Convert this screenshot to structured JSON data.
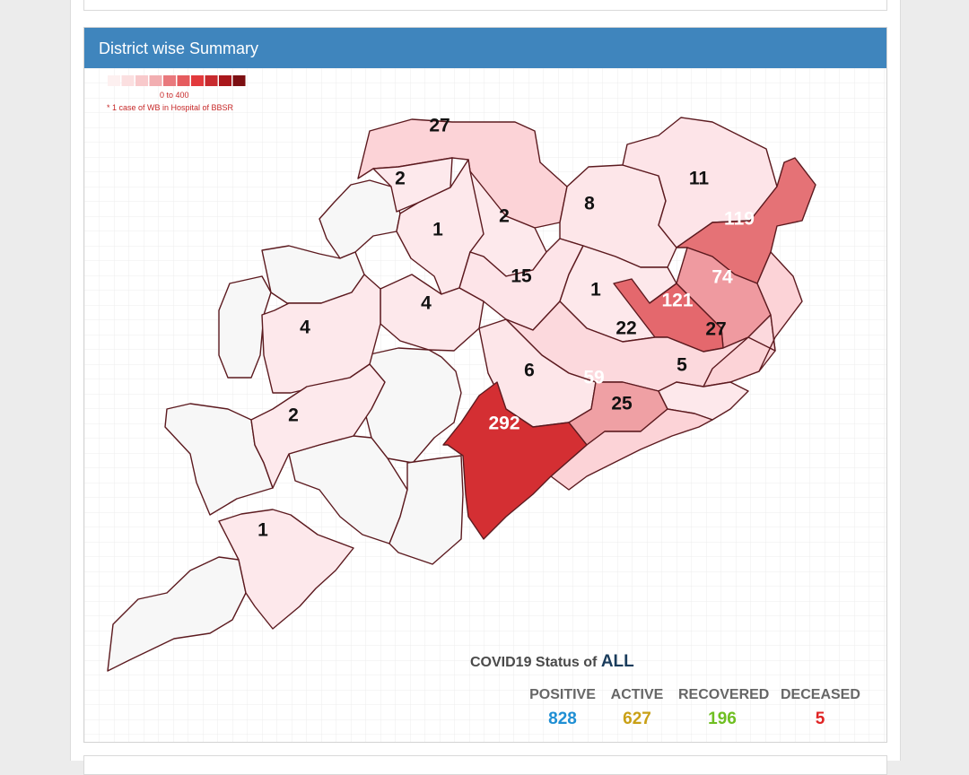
{
  "card": {
    "title": "District wise Summary"
  },
  "legend": {
    "range": "0 to 400",
    "note": "* 1 case of WB in Hospital of BBSR",
    "scale_colors": [
      "#fdf0f0",
      "#fbdfe0",
      "#f8c9cb",
      "#f2aeb1",
      "#e9797d",
      "#e55b5e",
      "#e2393c",
      "#c82a2e",
      "#a9171c",
      "#7c0f12"
    ]
  },
  "map": {
    "districts": [
      {
        "count": "27",
        "fill": "#fcd3d7"
      },
      {
        "count": "2",
        "fill": "#fde9ec"
      },
      {
        "count": "1",
        "fill": "#fde8eb"
      },
      {
        "count": "2",
        "fill": "#fde9ec"
      },
      {
        "count": "8",
        "fill": "#fde6e9"
      },
      {
        "count": "11",
        "fill": "#fde4e8"
      },
      {
        "count": "119",
        "fill": "#e57276"
      },
      {
        "count": "15",
        "fill": "#fde4e8"
      },
      {
        "count": "1",
        "fill": "#fde8eb"
      },
      {
        "count": "74",
        "fill": "#ef9aa0"
      },
      {
        "count": "121",
        "fill": "#e4686d"
      },
      {
        "count": "4",
        "fill": "#fde8eb"
      },
      {
        "count": "4",
        "fill": "#fde8eb"
      },
      {
        "count": "22",
        "fill": "#fcd9dd"
      },
      {
        "count": "27",
        "fill": "#fcd3d7"
      },
      {
        "count": "6",
        "fill": "#fde6e9"
      },
      {
        "count": "59",
        "fill": "#efa0a4"
      },
      {
        "count": "5",
        "fill": "#fde8eb"
      },
      {
        "count": "25",
        "fill": "#fcd3d7"
      },
      {
        "count": "292",
        "fill": "#d42f33"
      },
      {
        "count": "2",
        "fill": "#fde9ec"
      },
      {
        "count": "1",
        "fill": "#fde8eb"
      }
    ],
    "no_case_fill": "#f7f7f7",
    "border_color": "#5c1a1f"
  },
  "status": {
    "title": "COVID19 Status of",
    "scope": "ALL",
    "positive": {
      "label": "POSITIVE",
      "value": "828",
      "color": "#1f8fd4"
    },
    "active": {
      "label": "ACTIVE",
      "value": "627",
      "color": "#c9a016"
    },
    "recovered": {
      "label": "RECOVERED",
      "value": "196",
      "color": "#6fbf22"
    },
    "deceased": {
      "label": "DECEASED",
      "value": "5",
      "color": "#e02424"
    }
  }
}
